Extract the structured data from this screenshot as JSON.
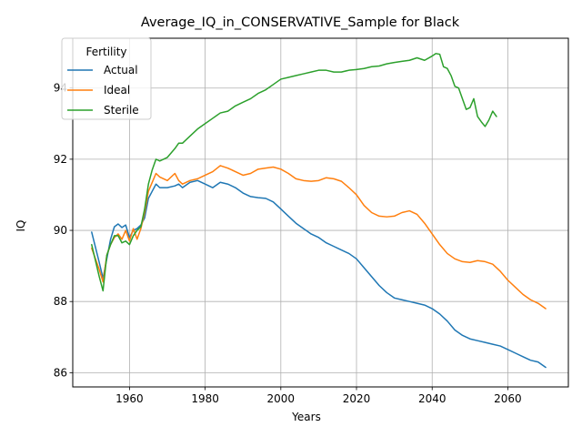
{
  "chart_data": {
    "type": "line",
    "title": "Average_IQ_in_CONSERVATIVE_Sample for Black",
    "xlabel": "Years",
    "ylabel": "IQ",
    "xlim": [
      1945,
      2076
    ],
    "ylim": [
      85.6,
      95.4
    ],
    "x_ticks": [
      1960,
      1980,
      2000,
      2020,
      2040,
      2060
    ],
    "y_ticks": [
      86,
      88,
      90,
      92,
      94
    ],
    "grid": true,
    "legend": {
      "title": "Fertility",
      "placement": "top-left"
    },
    "series": [
      {
        "name": "Actual",
        "color": "#1f77b4",
        "x": [
          1950,
          1952,
          1953,
          1954,
          1955,
          1956,
          1957,
          1958,
          1959,
          1960,
          1961,
          1962,
          1963,
          1964,
          1965,
          1966,
          1967,
          1968,
          1970,
          1972,
          1973,
          1974,
          1976,
          1978,
          1980,
          1982,
          1984,
          1986,
          1988,
          1990,
          1992,
          1994,
          1996,
          1998,
          2000,
          2002,
          2004,
          2006,
          2008,
          2010,
          2012,
          2014,
          2016,
          2018,
          2020,
          2022,
          2024,
          2026,
          2028,
          2030,
          2032,
          2034,
          2036,
          2038,
          2040,
          2042,
          2044,
          2046,
          2048,
          2050,
          2052,
          2054,
          2056,
          2058,
          2060,
          2062,
          2064,
          2066,
          2068,
          2070
        ],
        "y": [
          89.95,
          89.1,
          88.65,
          89.2,
          89.75,
          90.1,
          90.18,
          90.08,
          90.15,
          89.8,
          90.0,
          90.05,
          90.15,
          90.35,
          90.9,
          91.1,
          91.3,
          91.2,
          91.2,
          91.25,
          91.3,
          91.2,
          91.35,
          91.4,
          91.3,
          91.2,
          91.35,
          91.3,
          91.2,
          91.05,
          90.95,
          90.92,
          90.9,
          90.8,
          90.6,
          90.4,
          90.2,
          90.05,
          89.9,
          89.8,
          89.65,
          89.55,
          89.45,
          89.35,
          89.2,
          88.95,
          88.7,
          88.45,
          88.25,
          88.1,
          88.05,
          88.0,
          87.95,
          87.9,
          87.8,
          87.65,
          87.45,
          87.2,
          87.05,
          86.95,
          86.9,
          86.85,
          86.8,
          86.75,
          86.65,
          86.55,
          86.45,
          86.35,
          86.3,
          86.15
        ]
      },
      {
        "name": "Ideal",
        "color": "#ff7f0e",
        "x": [
          1950,
          1952,
          1953,
          1954,
          1955,
          1956,
          1957,
          1958,
          1959,
          1960,
          1961,
          1962,
          1963,
          1964,
          1965,
          1966,
          1967,
          1968,
          1970,
          1972,
          1973,
          1974,
          1976,
          1978,
          1980,
          1982,
          1984,
          1986,
          1988,
          1990,
          1992,
          1994,
          1996,
          1998,
          2000,
          2002,
          2004,
          2006,
          2008,
          2010,
          2012,
          2014,
          2016,
          2018,
          2020,
          2022,
          2024,
          2026,
          2028,
          2030,
          2032,
          2034,
          2036,
          2038,
          2040,
          2042,
          2044,
          2046,
          2048,
          2050,
          2052,
          2054,
          2056,
          2058,
          2060,
          2062,
          2064,
          2066,
          2068,
          2070
        ],
        "y": [
          89.5,
          88.9,
          88.55,
          89.3,
          89.6,
          89.8,
          89.9,
          89.75,
          90.0,
          89.7,
          90.05,
          89.75,
          90.05,
          90.5,
          91.1,
          91.35,
          91.6,
          91.5,
          91.4,
          91.6,
          91.4,
          91.3,
          91.4,
          91.45,
          91.55,
          91.65,
          91.82,
          91.75,
          91.65,
          91.55,
          91.6,
          91.72,
          91.75,
          91.78,
          91.72,
          91.6,
          91.45,
          91.4,
          91.38,
          91.4,
          91.48,
          91.45,
          91.38,
          91.2,
          91.0,
          90.7,
          90.5,
          90.4,
          90.38,
          90.4,
          90.5,
          90.55,
          90.45,
          90.2,
          89.9,
          89.6,
          89.35,
          89.2,
          89.12,
          89.1,
          89.15,
          89.12,
          89.05,
          88.85,
          88.6,
          88.4,
          88.2,
          88.05,
          87.95,
          87.8
        ]
      },
      {
        "name": "Sterile",
        "color": "#2ca02c",
        "x": [
          1950,
          1952,
          1953,
          1954,
          1955,
          1956,
          1957,
          1958,
          1959,
          1960,
          1961,
          1962,
          1963,
          1964,
          1965,
          1966,
          1967,
          1968,
          1970,
          1972,
          1973,
          1974,
          1976,
          1978,
          1980,
          1982,
          1984,
          1986,
          1988,
          1990,
          1992,
          1994,
          1996,
          1998,
          2000,
          2002,
          2004,
          2006,
          2008,
          2010,
          2012,
          2014,
          2016,
          2018,
          2020,
          2022,
          2024,
          2026,
          2028,
          2030,
          2032,
          2034,
          2036,
          2038,
          2040,
          2041,
          2042,
          2043,
          2044,
          2045,
          2046,
          2047,
          2048,
          2049,
          2050,
          2051,
          2052,
          2053,
          2054,
          2055,
          2056,
          2057
        ],
        "y": [
          89.6,
          88.7,
          88.3,
          89.3,
          89.6,
          89.85,
          89.85,
          89.65,
          89.7,
          89.6,
          89.85,
          90.0,
          90.1,
          90.6,
          91.3,
          91.7,
          92.0,
          91.95,
          92.05,
          92.3,
          92.45,
          92.45,
          92.65,
          92.85,
          93.0,
          93.15,
          93.3,
          93.35,
          93.5,
          93.6,
          93.7,
          93.85,
          93.95,
          94.1,
          94.25,
          94.3,
          94.35,
          94.4,
          94.45,
          94.5,
          94.5,
          94.45,
          94.45,
          94.5,
          94.52,
          94.55,
          94.6,
          94.62,
          94.68,
          94.72,
          94.75,
          94.78,
          94.85,
          94.78,
          94.9,
          94.97,
          94.95,
          94.6,
          94.55,
          94.35,
          94.05,
          94.0,
          93.7,
          93.4,
          93.45,
          93.7,
          93.2,
          93.05,
          92.92,
          93.1,
          93.35,
          93.2
        ]
      }
    ]
  }
}
